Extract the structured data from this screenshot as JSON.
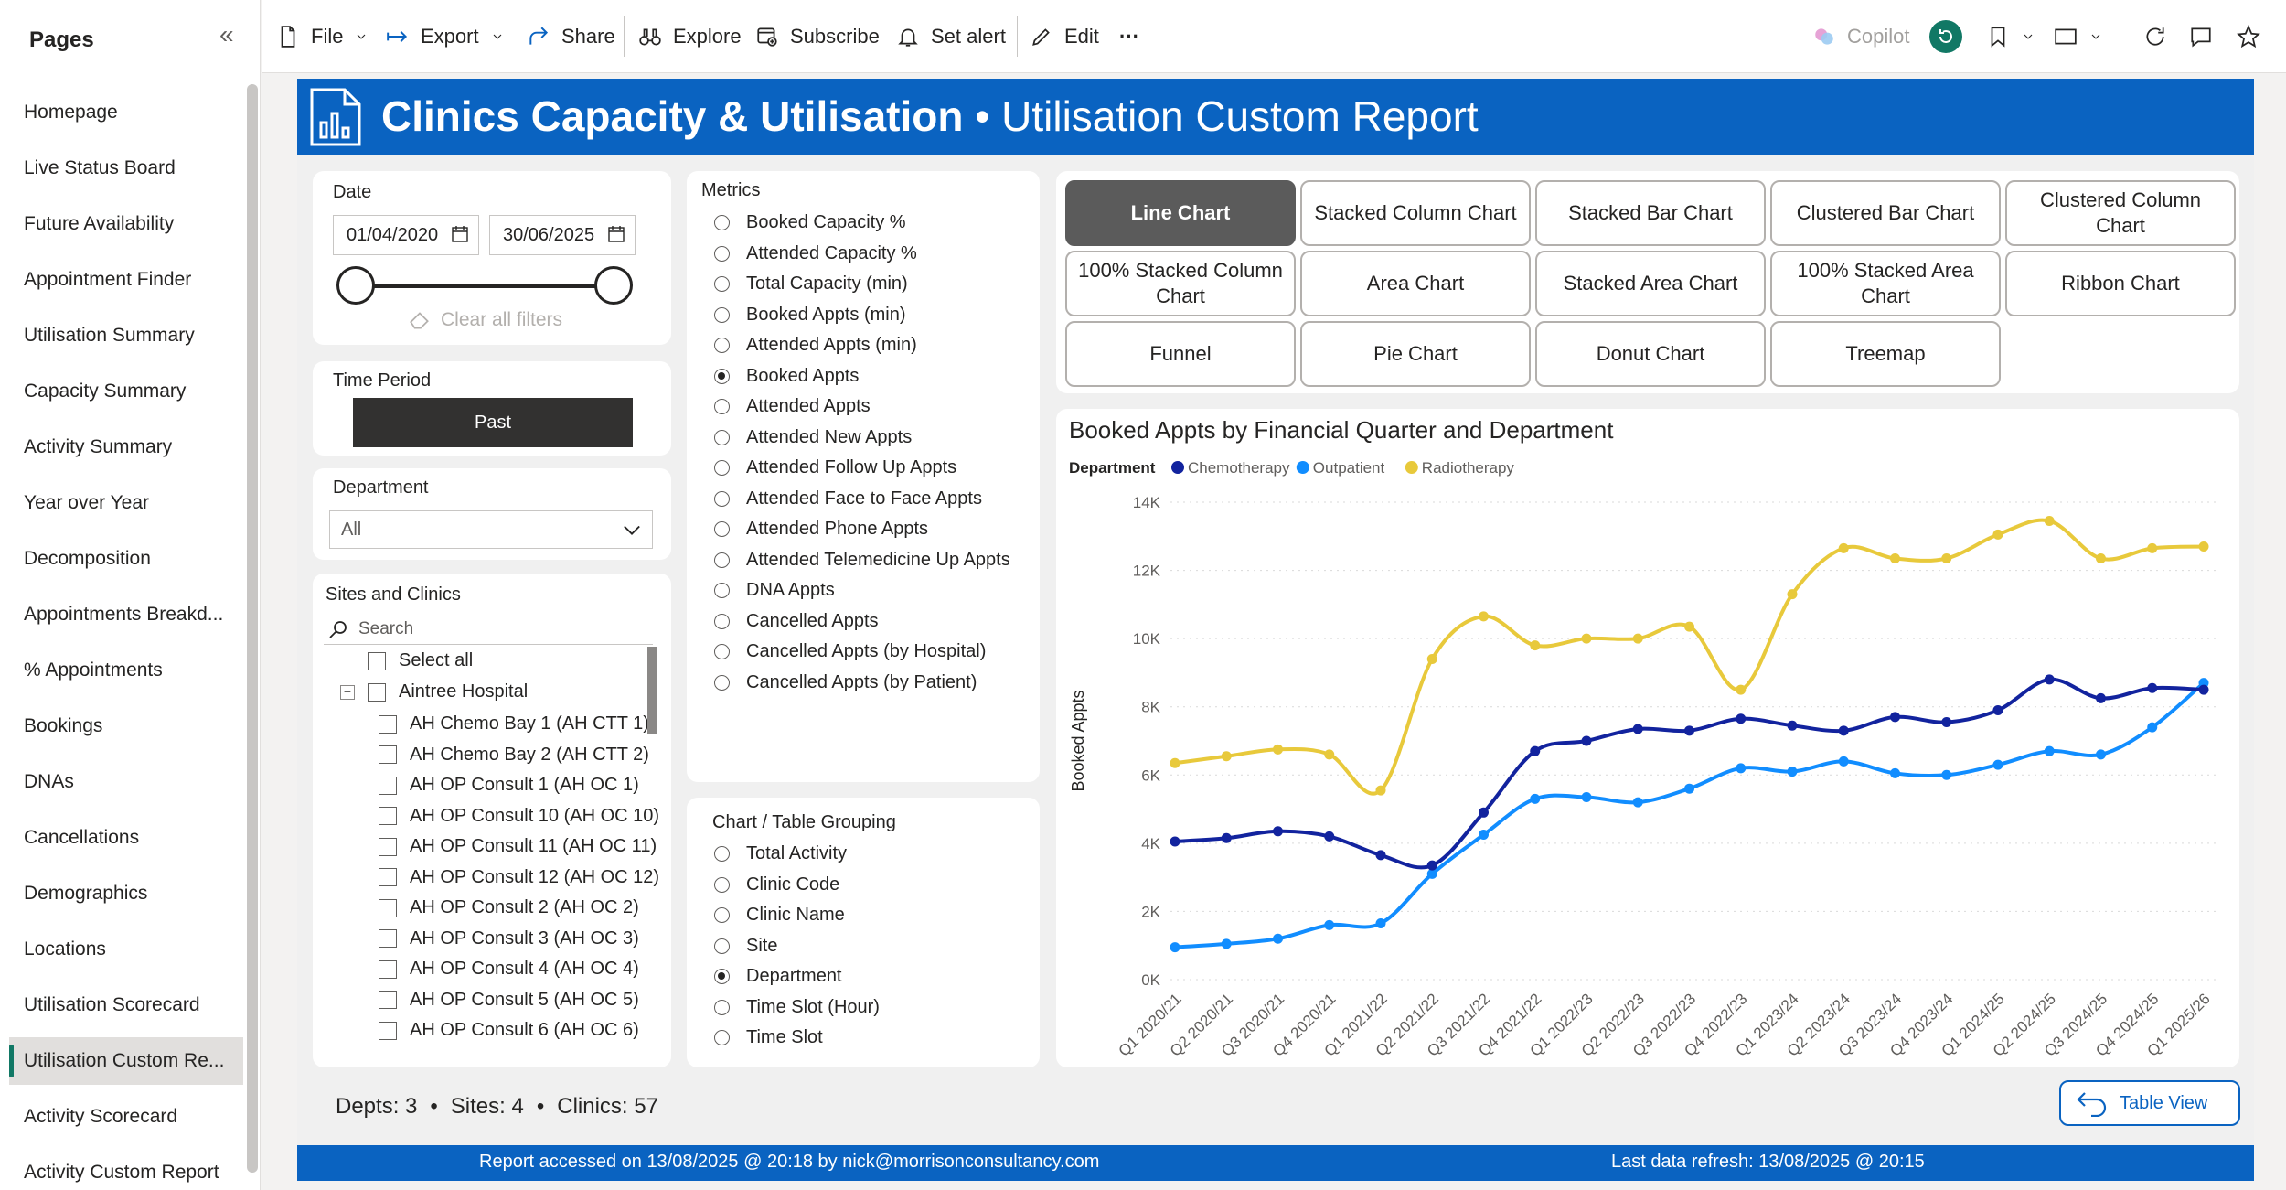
{
  "sidebar": {
    "title": "Pages",
    "items": [
      {
        "label": "Homepage"
      },
      {
        "label": "Live Status Board"
      },
      {
        "label": "Future Availability"
      },
      {
        "label": "Appointment Finder"
      },
      {
        "label": "Utilisation Summary"
      },
      {
        "label": "Capacity Summary"
      },
      {
        "label": "Activity Summary"
      },
      {
        "label": "Year over Year"
      },
      {
        "label": "Decomposition"
      },
      {
        "label": "Appointments Breakd..."
      },
      {
        "label": "% Appointments"
      },
      {
        "label": "Bookings"
      },
      {
        "label": "DNAs"
      },
      {
        "label": "Cancellations"
      },
      {
        "label": "Demographics"
      },
      {
        "label": "Locations"
      },
      {
        "label": "Utilisation Scorecard"
      },
      {
        "label": "Utilisation Custom Re...",
        "active": true
      },
      {
        "label": "Activity Scorecard"
      },
      {
        "label": "Activity Custom Report"
      }
    ]
  },
  "toolbar": {
    "file": "File",
    "export": "Export",
    "share": "Share",
    "explore": "Explore",
    "subscribe": "Subscribe",
    "set_alert": "Set alert",
    "edit": "Edit",
    "more": "···",
    "copilot": "Copilot"
  },
  "header": {
    "title_bold": "Clinics Capacity & Utilisation",
    "title_rest": " • Utilisation Custom Report"
  },
  "filters": {
    "date_label": "Date",
    "date_from": "01/04/2020",
    "date_to": "30/06/2025",
    "clear_filters": "Clear all filters",
    "time_period_label": "Time Period",
    "time_period_value": "Past",
    "department_label": "Department",
    "department_value": "All",
    "sites_label": "Sites and Clinics",
    "search_placeholder": "Search",
    "select_all": "Select all",
    "hospital": "Aintree Hospital",
    "clinics": [
      "AH Chemo Bay 1 (AH CTT 1)",
      "AH Chemo Bay 2 (AH CTT 2)",
      "AH OP Consult 1 (AH OC 1)",
      "AH OP Consult 10 (AH OC 10)",
      "AH OP Consult 11 (AH OC 11)",
      "AH OP Consult 12 (AH OC 12)",
      "AH OP Consult 2 (AH OC 2)",
      "AH OP Consult 3 (AH OC 3)",
      "AH OP Consult 4 (AH OC 4)",
      "AH OP Consult 5 (AH OC 5)",
      "AH OP Consult 6 (AH OC 6)"
    ]
  },
  "metrics": {
    "label": "Metrics",
    "selected": "Booked Appts",
    "options": [
      "Booked Capacity %",
      "Attended Capacity %",
      "Total Capacity (min)",
      "Booked Appts (min)",
      "Attended Appts (min)",
      "Booked Appts",
      "Attended Appts",
      "Attended New Appts",
      "Attended Follow Up Appts",
      "Attended Face to Face Appts",
      "Attended Phone Appts",
      "Attended Telemedicine Up Appts",
      "DNA Appts",
      "Cancelled Appts",
      "Cancelled Appts (by Hospital)",
      "Cancelled Appts (by Patient)"
    ]
  },
  "grouping": {
    "label": "Chart / Table Grouping",
    "selected": "Department",
    "options": [
      "Total Activity",
      "Clinic Code",
      "Clinic Name",
      "Site",
      "Department",
      "Time Slot (Hour)",
      "Time Slot"
    ]
  },
  "chart_buttons": {
    "selected": "Line Chart",
    "items": [
      "Line Chart",
      "Stacked Column Chart",
      "Stacked Bar Chart",
      "Clustered Bar Chart",
      "Clustered Column Chart",
      "100% Stacked Column Chart",
      "Area Chart",
      "Stacked Area Chart",
      "100% Stacked Area Chart",
      "Ribbon Chart",
      "Funnel",
      "Pie Chart",
      "Donut Chart",
      "Treemap"
    ]
  },
  "chart_data": {
    "type": "line",
    "title": "Booked Appts by Financial Quarter and Department",
    "legend_title": "Department",
    "ylabel": "Booked Appts",
    "xlabel": "",
    "ylim": [
      0,
      14000
    ],
    "yticks": [
      0,
      2000,
      4000,
      6000,
      8000,
      10000,
      12000,
      14000
    ],
    "ytick_labels": [
      "0K",
      "2K",
      "4K",
      "6K",
      "8K",
      "10K",
      "12K",
      "14K"
    ],
    "grid": true,
    "legend_position": "top-left",
    "categories": [
      "Q1 2020/21",
      "Q2 2020/21",
      "Q3 2020/21",
      "Q4 2020/21",
      "Q1 2021/22",
      "Q2 2021/22",
      "Q3 2021/22",
      "Q4 2021/22",
      "Q1 2022/23",
      "Q2 2022/23",
      "Q3 2022/23",
      "Q4 2022/23",
      "Q1 2023/24",
      "Q2 2023/24",
      "Q3 2023/24",
      "Q4 2023/24",
      "Q1 2024/25",
      "Q2 2024/25",
      "Q3 2024/25",
      "Q4 2024/25",
      "Q1 2025/26"
    ],
    "series": [
      {
        "name": "Chemotherapy",
        "color": "#12239e",
        "values": [
          4050,
          4150,
          4350,
          4200,
          3650,
          3350,
          4900,
          6700,
          7000,
          7350,
          7300,
          7650,
          7450,
          7300,
          7700,
          7550,
          7900,
          8800,
          8250,
          8550,
          8500
        ]
      },
      {
        "name": "Outpatient",
        "color": "#118dff",
        "values": [
          950,
          1050,
          1200,
          1600,
          1650,
          3100,
          4250,
          5300,
          5350,
          5200,
          5600,
          6200,
          6100,
          6400,
          6050,
          6000,
          6300,
          6700,
          6600,
          7400,
          8700
        ]
      },
      {
        "name": "Radiotherapy",
        "color": "#e8c93b",
        "values": [
          6350,
          6550,
          6750,
          6600,
          5550,
          9400,
          10650,
          9800,
          10000,
          10000,
          10350,
          8500,
          11300,
          12650,
          12350,
          12350,
          13050,
          13450,
          12350,
          12650,
          12700
        ]
      }
    ]
  },
  "summary": {
    "depts": "Depts: 3",
    "sites": "Sites: 4",
    "clinics": "Clinics: 57",
    "sep": "•"
  },
  "table_view": "Table View",
  "footer": {
    "accessed": "Report accessed on 13/08/2025 @ 20:18 by nick@morrisonconsultancy.com",
    "refresh": "Last data refresh: 13/08/2025 @ 20:15"
  }
}
